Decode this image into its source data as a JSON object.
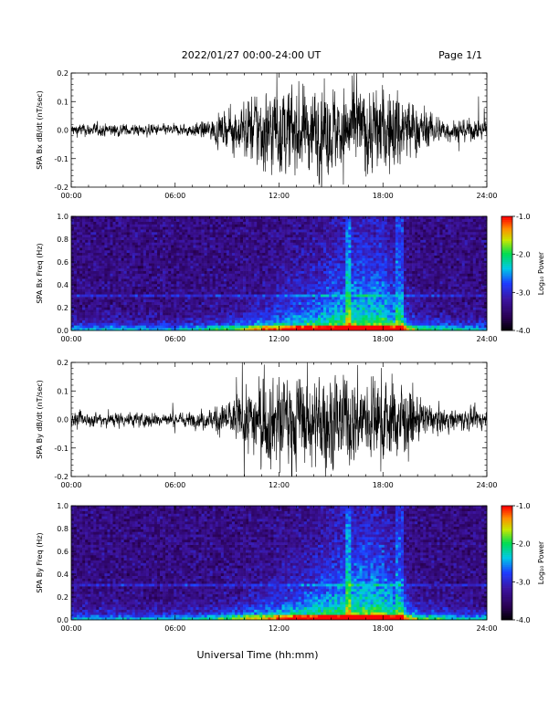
{
  "header": {
    "title": "2022/01/27  00:00-24:00 UT",
    "page": "Page 1/1"
  },
  "footer": {
    "xlabel": "Universal Time (hh:mm)"
  },
  "chart_data": [
    {
      "type": "line",
      "ylabel": "SPA Bx dB/dt (nT/sec)",
      "x_unit": "hours UT",
      "xlim": [
        0,
        24
      ],
      "xticks": [
        "00:00",
        "06:00",
        "12:00",
        "18:00",
        "24:00"
      ],
      "ylim": [
        -0.2,
        0.2
      ],
      "yticks": [
        "0.2",
        "0.1",
        "0.0",
        "-0.1",
        "-0.2"
      ],
      "envelope_x": [
        0,
        2,
        4,
        6,
        7,
        8,
        9,
        10,
        11,
        12,
        13,
        14,
        15,
        16,
        17,
        18,
        19,
        20,
        21,
        22,
        23,
        24
      ],
      "envelope_amplitude": [
        0.03,
        0.03,
        0.025,
        0.025,
        0.03,
        0.05,
        0.08,
        0.13,
        0.2,
        0.2,
        0.2,
        0.2,
        0.2,
        0.2,
        0.2,
        0.2,
        0.2,
        0.12,
        0.07,
        0.05,
        0.05,
        0.04
      ]
    },
    {
      "type": "heatmap",
      "ylabel": "SPA Bx Freq (Hz)",
      "xlim": [
        0,
        24
      ],
      "xticks": [
        "00:00",
        "06:00",
        "12:00",
        "18:00",
        "24:00"
      ],
      "ylim": [
        0,
        1.0
      ],
      "yticks": [
        "1.0",
        "0.8",
        "0.6",
        "0.4",
        "0.2",
        "0.0"
      ],
      "colorbar": {
        "label": "Log₁₀ Power",
        "range": [
          -4.0,
          -1.0
        ],
        "ticks": [
          "-1.0",
          "-2.0",
          "-3.0",
          "-4.0"
        ]
      }
    },
    {
      "type": "line",
      "ylabel": "SPA By dB/dt (nT/sec)",
      "x_unit": "hours UT",
      "xlim": [
        0,
        24
      ],
      "xticks": [
        "00:00",
        "06:00",
        "12:00",
        "18:00",
        "24:00"
      ],
      "ylim": [
        -0.2,
        0.2
      ],
      "yticks": [
        "0.2",
        "0.1",
        "0.0",
        "-0.1",
        "-0.2"
      ],
      "envelope_x": [
        0,
        2,
        4,
        6,
        7,
        8,
        9,
        10,
        11,
        12,
        13,
        14,
        15,
        16,
        17,
        18,
        19,
        20,
        21,
        22,
        23,
        24
      ],
      "envelope_amplitude": [
        0.03,
        0.035,
        0.035,
        0.03,
        0.035,
        0.05,
        0.08,
        0.13,
        0.2,
        0.2,
        0.2,
        0.2,
        0.2,
        0.2,
        0.2,
        0.2,
        0.18,
        0.1,
        0.06,
        0.05,
        0.05,
        0.04
      ]
    },
    {
      "type": "heatmap",
      "ylabel": "SPA By Freq (Hz)",
      "xlim": [
        0,
        24
      ],
      "xticks": [
        "00:00",
        "06:00",
        "12:00",
        "18:00",
        "24:00"
      ],
      "ylim": [
        0,
        1.0
      ],
      "yticks": [
        "1.0",
        "0.8",
        "0.6",
        "0.4",
        "0.2",
        "0.0"
      ],
      "colorbar": {
        "label": "Log₁₀ Power",
        "range": [
          -4.0,
          -1.0
        ],
        "ticks": [
          "-1.0",
          "-2.0",
          "-3.0",
          "-4.0"
        ]
      }
    }
  ]
}
